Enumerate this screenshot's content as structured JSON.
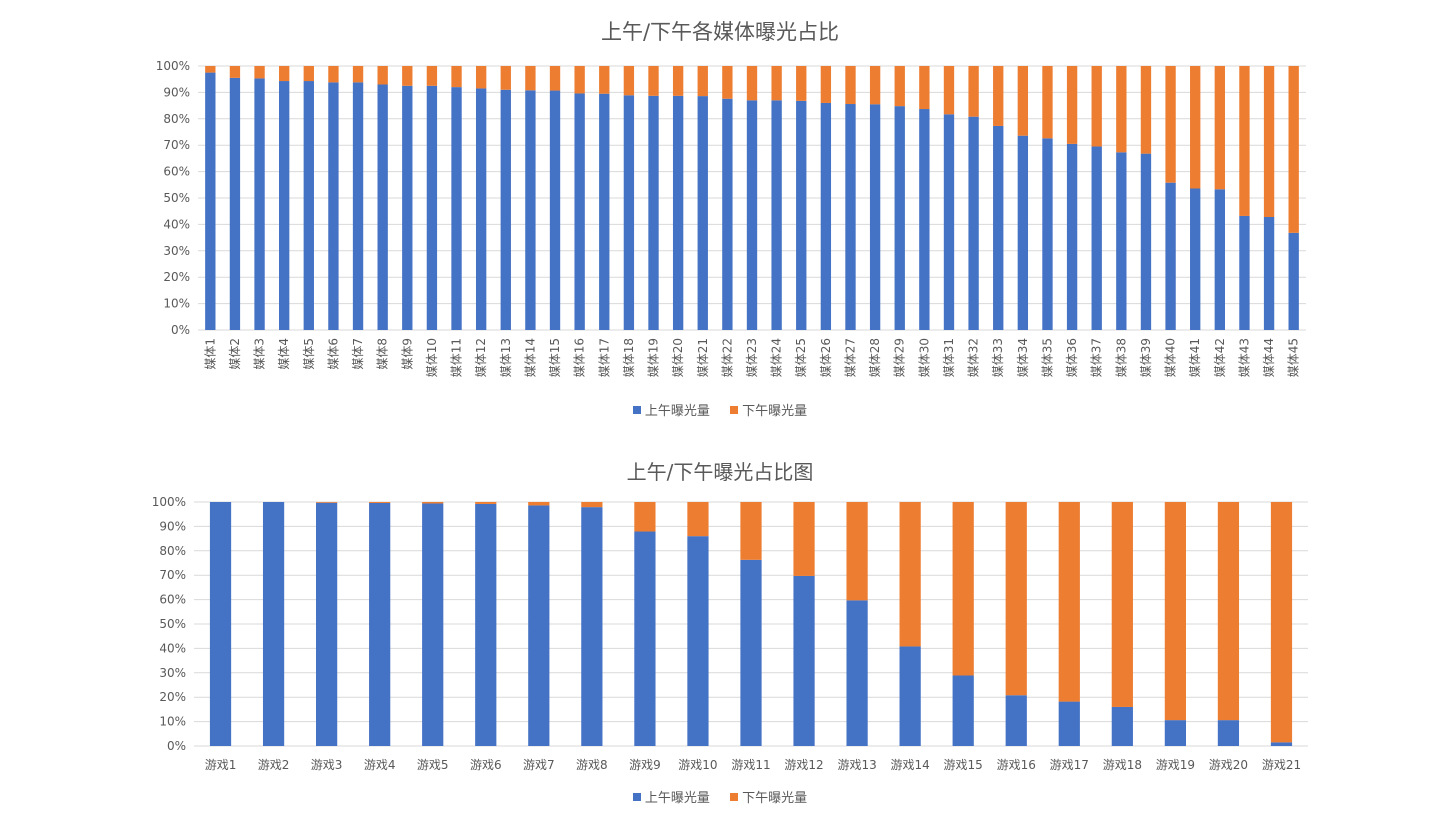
{
  "colors": {
    "series1": "#4472C4",
    "series2": "#ED7D31",
    "grid": "#D9D9D9",
    "text": "#595959"
  },
  "chart_data": [
    {
      "type": "bar",
      "stacked": true,
      "title": "上午/下午各媒体曝光占比",
      "ylim": [
        0,
        100
      ],
      "yticks": [
        "0%",
        "10%",
        "20%",
        "30%",
        "40%",
        "50%",
        "60%",
        "70%",
        "80%",
        "90%",
        "100%"
      ],
      "categories": [
        "媒体1",
        "媒体2",
        "媒体3",
        "媒体4",
        "媒体5",
        "媒体6",
        "媒体7",
        "媒体8",
        "媒体9",
        "媒体10",
        "媒体11",
        "媒体12",
        "媒体13",
        "媒体14",
        "媒体15",
        "媒体16",
        "媒体17",
        "媒体18",
        "媒体19",
        "媒体20",
        "媒体21",
        "媒体22",
        "媒体23",
        "媒体24",
        "媒体25",
        "媒体26",
        "媒体27",
        "媒体28",
        "媒体29",
        "媒体30",
        "媒体31",
        "媒体32",
        "媒体33",
        "媒体34",
        "媒体35",
        "媒体36",
        "媒体37",
        "媒体38",
        "媒体39",
        "媒体40",
        "媒体41",
        "媒体42",
        "媒体43",
        "媒体44",
        "媒体45"
      ],
      "series": [
        {
          "name": "上午曝光量",
          "values": [
            97.5,
            95.5,
            95.3,
            94.3,
            94.3,
            93.8,
            93.8,
            93.0,
            92.5,
            92.5,
            92.0,
            91.5,
            91.0,
            90.8,
            90.7,
            89.6,
            89.5,
            88.9,
            88.7,
            88.7,
            88.6,
            87.6,
            87.0,
            87.0,
            86.8,
            86.0,
            85.6,
            85.5,
            84.8,
            83.7,
            81.7,
            80.8,
            77.3,
            73.6,
            72.6,
            70.5,
            69.5,
            67.3,
            66.8,
            55.8,
            53.6,
            53.3,
            43.2,
            42.8,
            36.8
          ]
        },
        {
          "name": "下午曝光量",
          "values": [
            2.5,
            4.5,
            4.7,
            5.7,
            5.7,
            6.2,
            6.2,
            7.0,
            7.5,
            7.5,
            8.0,
            8.5,
            9.0,
            9.2,
            9.3,
            10.4,
            10.5,
            11.1,
            11.3,
            11.3,
            11.4,
            12.4,
            13.0,
            13.0,
            13.2,
            14.0,
            14.4,
            14.5,
            15.2,
            16.3,
            18.3,
            19.2,
            22.7,
            26.4,
            27.4,
            29.5,
            30.5,
            32.7,
            33.2,
            44.2,
            46.4,
            46.7,
            56.8,
            57.2,
            63.2
          ]
        }
      ],
      "legend": [
        "上午曝光量",
        "下午曝光量"
      ]
    },
    {
      "type": "bar",
      "stacked": true,
      "title": "上午/下午曝光占比图",
      "ylim": [
        0,
        100
      ],
      "yticks": [
        "0%",
        "10%",
        "20%",
        "30%",
        "40%",
        "50%",
        "60%",
        "70%",
        "80%",
        "90%",
        "100%"
      ],
      "categories": [
        "游戏1",
        "游戏2",
        "游戏3",
        "游戏4",
        "游戏5",
        "游戏6",
        "游戏7",
        "游戏8",
        "游戏9",
        "游戏10",
        "游戏11",
        "游戏12",
        "游戏13",
        "游戏14",
        "游戏15",
        "游戏16",
        "游戏17",
        "游戏18",
        "游戏19",
        "游戏20",
        "游戏21"
      ],
      "series": [
        {
          "name": "上午曝光量",
          "values": [
            100,
            100,
            99.7,
            99.6,
            99.4,
            99.2,
            98.6,
            97.9,
            87.9,
            86.0,
            76.3,
            69.7,
            59.7,
            40.8,
            28.9,
            20.8,
            18.2,
            16.0,
            10.6,
            10.6,
            1.5
          ]
        },
        {
          "name": "下午曝光量",
          "values": [
            0,
            0,
            0.3,
            0.4,
            0.6,
            0.8,
            1.4,
            2.1,
            12.1,
            14.0,
            23.7,
            30.3,
            40.3,
            59.2,
            71.1,
            79.2,
            81.8,
            84.0,
            89.4,
            89.4,
            98.5
          ]
        }
      ],
      "legend": [
        "上午曝光量",
        "下午曝光量"
      ]
    }
  ]
}
